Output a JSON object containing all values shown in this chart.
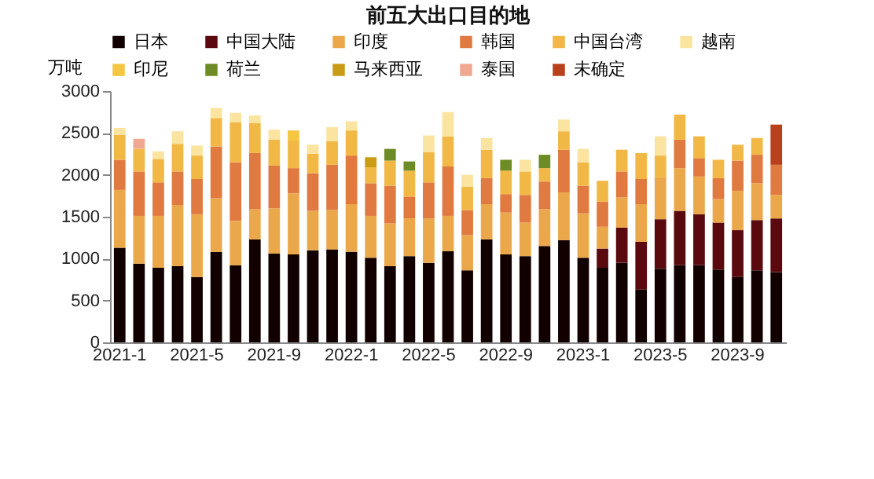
{
  "chart_data": {
    "type": "bar",
    "stacked": true,
    "title": "前五大出口目的地",
    "ylabel": "万吨",
    "legend": "top",
    "categories": [
      "2021-1",
      null,
      null,
      null,
      "2021-5",
      null,
      null,
      null,
      "2021-9",
      null,
      null,
      null,
      "2022-1",
      null,
      null,
      null,
      "2022-5",
      null,
      null,
      null,
      "2022-9",
      null,
      null,
      null,
      "2023-1",
      null,
      null,
      null,
      "2023-5",
      null,
      null,
      null,
      "2023-9",
      null,
      null
    ],
    "ylim": [
      0,
      3000
    ],
    "yticks": [
      0,
      500,
      1000,
      1500,
      2000,
      2500,
      3000
    ],
    "series": [
      {
        "name": "日本",
        "color": "#120000",
        "values": [
          1130,
          940,
          890,
          910,
          780,
          1080,
          920,
          1230,
          1060,
          1050,
          1100,
          1110,
          1080,
          1010,
          910,
          1030,
          950,
          1090,
          860,
          1230,
          1050,
          1030,
          1150,
          1220,
          1010,
          890,
          950,
          630,
          880,
          920,
          920,
          870,
          780,
          860,
          840
        ]
      },
      {
        "name": "中国大陆",
        "color": "#5a0a0e",
        "values": [
          null,
          null,
          null,
          null,
          null,
          null,
          null,
          null,
          null,
          null,
          null,
          null,
          null,
          null,
          null,
          null,
          null,
          null,
          null,
          null,
          null,
          null,
          null,
          null,
          null,
          230,
          420,
          570,
          590,
          650,
          610,
          560,
          560,
          600,
          640
        ]
      },
      {
        "name": "印度",
        "color": "#eba84a",
        "values": [
          690,
          570,
          620,
          730,
          750,
          640,
          530,
          360,
          540,
          730,
          470,
          470,
          570,
          500,
          510,
          450,
          530,
          420,
          420,
          420,
          500,
          400,
          440,
          570,
          530,
          260,
          360,
          450,
          500,
          510,
          450,
          280,
          470,
          440,
          280
        ]
      },
      {
        "name": "韩国",
        "color": "#e07a40",
        "values": [
          360,
          530,
          400,
          400,
          420,
          620,
          700,
          670,
          510,
          300,
          450,
          540,
          580,
          390,
          450,
          260,
          430,
          590,
          300,
          310,
          220,
          330,
          330,
          510,
          330,
          300,
          310,
          300,
          null,
          340,
          220,
          250,
          360,
          340,
          360
        ]
      },
      {
        "name": "中国台湾",
        "color": "#f2b845",
        "values": [
          300,
          270,
          280,
          330,
          280,
          340,
          480,
          360,
          310,
          330,
          230,
          280,
          300,
          190,
          300,
          310,
          360,
          360,
          280,
          340,
          280,
          280,
          160,
          220,
          280,
          250,
          260,
          310,
          260,
          300,
          260,
          220,
          190,
          200,
          null
        ]
      },
      {
        "name": "越南",
        "color": "#fae4a0",
        "values": [
          80,
          null,
          90,
          150,
          120,
          120,
          110,
          90,
          120,
          null,
          110,
          170,
          110,
          null,
          null,
          null,
          200,
          290,
          140,
          140,
          null,
          140,
          null,
          140,
          160,
          null,
          null,
          null,
          230,
          null,
          null,
          null,
          null,
          null,
          null
        ]
      },
      {
        "name": "印尼",
        "color": "#f5c640",
        "values": [
          null,
          null,
          null,
          null,
          null,
          null,
          null,
          null,
          null,
          120,
          null,
          null,
          null,
          null,
          null,
          null,
          null,
          null,
          null,
          null,
          null,
          null,
          null,
          null,
          null,
          null,
          null,
          null,
          null,
          null,
          null,
          null,
          null,
          null,
          null
        ]
      },
      {
        "name": "荷兰",
        "color": "#6e8c25",
        "values": [
          null,
          null,
          null,
          null,
          null,
          null,
          null,
          null,
          null,
          null,
          null,
          null,
          null,
          null,
          140,
          110,
          null,
          null,
          null,
          null,
          130,
          null,
          160,
          null,
          null,
          null,
          null,
          null,
          null,
          null,
          null,
          null,
          null,
          null,
          null
        ]
      },
      {
        "name": "马来西亚",
        "color": "#c99c15",
        "values": [
          null,
          null,
          null,
          null,
          null,
          null,
          null,
          null,
          null,
          null,
          null,
          null,
          null,
          120,
          null,
          null,
          null,
          null,
          null,
          null,
          null,
          null,
          null,
          null,
          null,
          null,
          null,
          null,
          null,
          null,
          null,
          null,
          null,
          null,
          null
        ]
      },
      {
        "name": "泰国",
        "color": "#f0a890",
        "values": [
          null,
          120,
          null,
          null,
          null,
          null,
          null,
          null,
          null,
          null,
          null,
          null,
          null,
          null,
          null,
          null,
          null,
          null,
          null,
          null,
          null,
          null,
          null,
          null,
          null,
          null,
          null,
          null,
          null,
          null,
          null,
          null,
          null,
          null,
          null
        ]
      },
      {
        "name": "未确定",
        "color": "#b8401c",
        "values": [
          null,
          null,
          null,
          null,
          null,
          null,
          null,
          null,
          null,
          null,
          null,
          null,
          null,
          null,
          null,
          null,
          null,
          null,
          null,
          null,
          null,
          null,
          null,
          null,
          null,
          null,
          null,
          null,
          null,
          null,
          null,
          null,
          null,
          null,
          480
        ]
      }
    ]
  }
}
